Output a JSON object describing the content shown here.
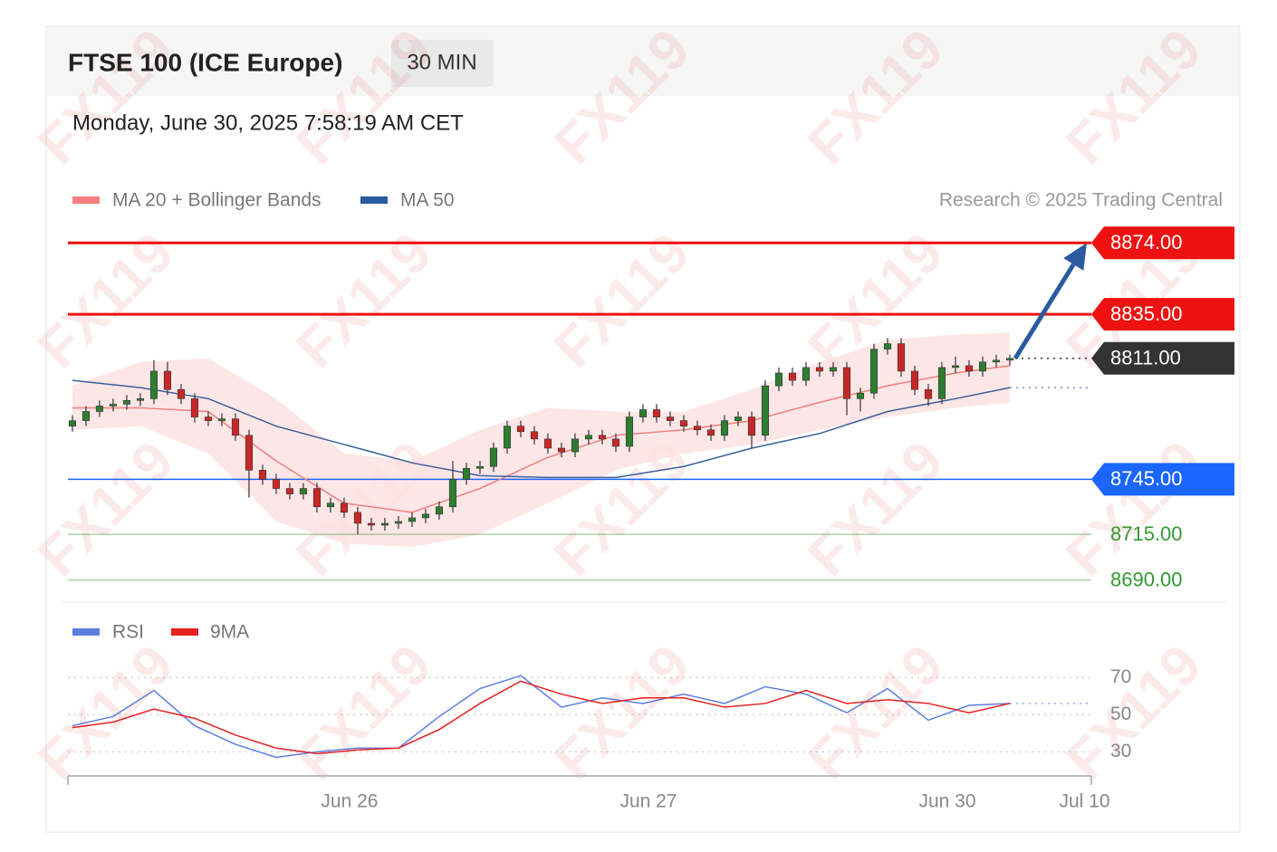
{
  "chart_data": {
    "type": "candlestick",
    "title": "FTSE 100 (ICE Europe)",
    "interval": "30 MIN",
    "subtitle": "Monday, June 30, 2025 7:58:19 AM CET",
    "credit": "Research © 2025 Trading Central",
    "watermark": "FX119",
    "legend": [
      "MA 20 + Bollinger Bands",
      "MA 50"
    ],
    "colors": {
      "up": "#2e7d32",
      "down": "#c62828",
      "ma20": "#f28080",
      "ma50": "#3b5f9e",
      "band": "#fde0e0"
    },
    "xlim": [
      -0.33,
      75
    ],
    "xticks": [
      {
        "value": 20.4,
        "label": "Jun 26"
      },
      {
        "value": 42.4,
        "label": "Jun 27"
      },
      {
        "value": 64.4,
        "label": "Jun 30"
      },
      {
        "value": 74.5,
        "label": "Jul 10"
      }
    ],
    "ylim": [
      8680,
      8883
    ],
    "candles": [
      [
        8774,
        8780,
        8771,
        8777
      ],
      [
        8777,
        8785,
        8774,
        8782
      ],
      [
        8782,
        8788,
        8779,
        8785
      ],
      [
        8785,
        8789,
        8782,
        8786
      ],
      [
        8786,
        8791,
        8783,
        8788
      ],
      [
        8788,
        8792,
        8785,
        8789
      ],
      [
        8789,
        8810,
        8786,
        8804
      ],
      [
        8804,
        8809,
        8791,
        8794
      ],
      [
        8794,
        8797,
        8786,
        8789
      ],
      [
        8789,
        8792,
        8776,
        8779
      ],
      [
        8779,
        8782,
        8774,
        8777
      ],
      [
        8777,
        8781,
        8774,
        8778
      ],
      [
        8778,
        8781,
        8766,
        8769
      ],
      [
        8769,
        8772,
        8735,
        8750
      ],
      [
        8750,
        8753,
        8742,
        8745
      ],
      [
        8745,
        8748,
        8737,
        8740
      ],
      [
        8740,
        8743,
        8734,
        8737
      ],
      [
        8737,
        8743,
        8734,
        8740
      ],
      [
        8740,
        8743,
        8727,
        8730
      ],
      [
        8730,
        8735,
        8727,
        8732
      ],
      [
        8732,
        8735,
        8724,
        8727
      ],
      [
        8727,
        8730,
        8715,
        8721
      ],
      [
        8721,
        8724,
        8717,
        8720
      ],
      [
        8720,
        8724,
        8717,
        8721
      ],
      [
        8721,
        8725,
        8718,
        8722
      ],
      [
        8722,
        8727,
        8719,
        8724
      ],
      [
        8724,
        8729,
        8721,
        8726
      ],
      [
        8726,
        8733,
        8723,
        8730
      ],
      [
        8730,
        8755,
        8727,
        8745
      ],
      [
        8745,
        8754,
        8742,
        8751
      ],
      [
        8751,
        8755,
        8748,
        8752
      ],
      [
        8752,
        8765,
        8749,
        8762
      ],
      [
        8762,
        8777,
        8759,
        8774
      ],
      [
        8774,
        8777,
        8768,
        8771
      ],
      [
        8771,
        8774,
        8764,
        8767
      ],
      [
        8767,
        8770,
        8759,
        8762
      ],
      [
        8762,
        8765,
        8757,
        8760
      ],
      [
        8760,
        8770,
        8757,
        8767
      ],
      [
        8767,
        8772,
        8764,
        8769
      ],
      [
        8769,
        8772,
        8764,
        8767
      ],
      [
        8767,
        8770,
        8760,
        8763
      ],
      [
        8763,
        8782,
        8760,
        8779
      ],
      [
        8779,
        8786,
        8776,
        8783
      ],
      [
        8783,
        8786,
        8776,
        8779
      ],
      [
        8779,
        8782,
        8774,
        8777
      ],
      [
        8777,
        8780,
        8771,
        8774
      ],
      [
        8774,
        8777,
        8769,
        8772
      ],
      [
        8772,
        8775,
        8766,
        8769
      ],
      [
        8769,
        8780,
        8766,
        8777
      ],
      [
        8777,
        8782,
        8774,
        8779
      ],
      [
        8779,
        8782,
        8762,
        8769
      ],
      [
        8769,
        8799,
        8766,
        8796
      ],
      [
        8796,
        8806,
        8793,
        8803
      ],
      [
        8803,
        8806,
        8796,
        8799
      ],
      [
        8799,
        8809,
        8796,
        8806
      ],
      [
        8806,
        8809,
        8801,
        8804
      ],
      [
        8804,
        8809,
        8801,
        8806
      ],
      [
        8806,
        8809,
        8780,
        8789
      ],
      [
        8789,
        8795,
        8782,
        8792
      ],
      [
        8792,
        8819,
        8789,
        8816
      ],
      [
        8816,
        8822,
        8813,
        8819
      ],
      [
        8819,
        8822,
        8801,
        8804
      ],
      [
        8804,
        8807,
        8791,
        8794
      ],
      [
        8794,
        8797,
        8785,
        8789
      ],
      [
        8789,
        8809,
        8786,
        8806
      ],
      [
        8806,
        8812,
        8803,
        8807
      ],
      [
        8807,
        8810,
        8801,
        8804
      ],
      [
        8804,
        8812,
        8801,
        8809
      ],
      [
        8809,
        8813,
        8806,
        8810
      ],
      [
        8810,
        8813,
        8807,
        8811
      ]
    ],
    "ma_x": [
      0,
      5,
      10,
      15,
      20,
      25,
      30,
      35,
      40,
      45,
      50,
      55,
      60,
      65,
      69
    ],
    "ma20": [
      8784,
      8784,
      8782,
      8755,
      8732,
      8727,
      8740,
      8757,
      8769,
      8772,
      8777,
      8787,
      8796,
      8803,
      8807
    ],
    "ma50": [
      8799,
      8795,
      8789,
      8774,
      8764,
      8754,
      8747,
      8746,
      8746,
      8752,
      8762,
      8770,
      8782,
      8789,
      8795
    ],
    "bb_upper": [
      8796,
      8809,
      8811,
      8789,
      8759,
      8755,
      8772,
      8784,
      8782,
      8782,
      8794,
      8809,
      8821,
      8824,
      8825
    ],
    "bb_lower": [
      8772,
      8774,
      8759,
      8722,
      8710,
      8708,
      8715,
      8732,
      8750,
      8759,
      8764,
      8772,
      8779,
      8784,
      8787
    ],
    "levels": {
      "values": [
        8874,
        8835,
        8811,
        8745,
        8715,
        8690
      ],
      "value_labels": [
        "8874.00",
        "8835.00",
        "8811.00",
        "8745.00",
        "8715.00",
        "8690.00"
      ],
      "colors": [
        "#ee1111",
        "#ee1111",
        "#333333",
        "#1a66ff",
        "#339933",
        "#339933"
      ],
      "boxed": [
        true,
        true,
        true,
        true,
        false,
        false
      ],
      "line_styles": [
        "solid",
        "solid",
        "dotted",
        "solid",
        "solid",
        "solid"
      ]
    },
    "rsi": {
      "legend": [
        "RSI",
        "9MA"
      ],
      "colors": [
        "#5b7fe0",
        "#e82020"
      ],
      "x": [
        0,
        3,
        6,
        9,
        12,
        15,
        18,
        21,
        24,
        27,
        30,
        33,
        36,
        39,
        42,
        45,
        48,
        51,
        54,
        57,
        60,
        63,
        66,
        69
      ],
      "rsi": [
        44,
        49,
        63,
        44,
        34,
        27,
        30,
        32,
        32,
        49,
        64,
        71,
        54,
        59,
        56,
        61,
        56,
        65,
        61,
        51,
        64,
        47,
        55,
        56
      ],
      "ma9": [
        43,
        46,
        53,
        48,
        39,
        32,
        29,
        31,
        32,
        42,
        56,
        68,
        61,
        56,
        59,
        59,
        54,
        56,
        63,
        56,
        58,
        56,
        51,
        56
      ],
      "ylim": [
        17,
        74
      ],
      "yticks": [
        30,
        50,
        70
      ]
    }
  }
}
